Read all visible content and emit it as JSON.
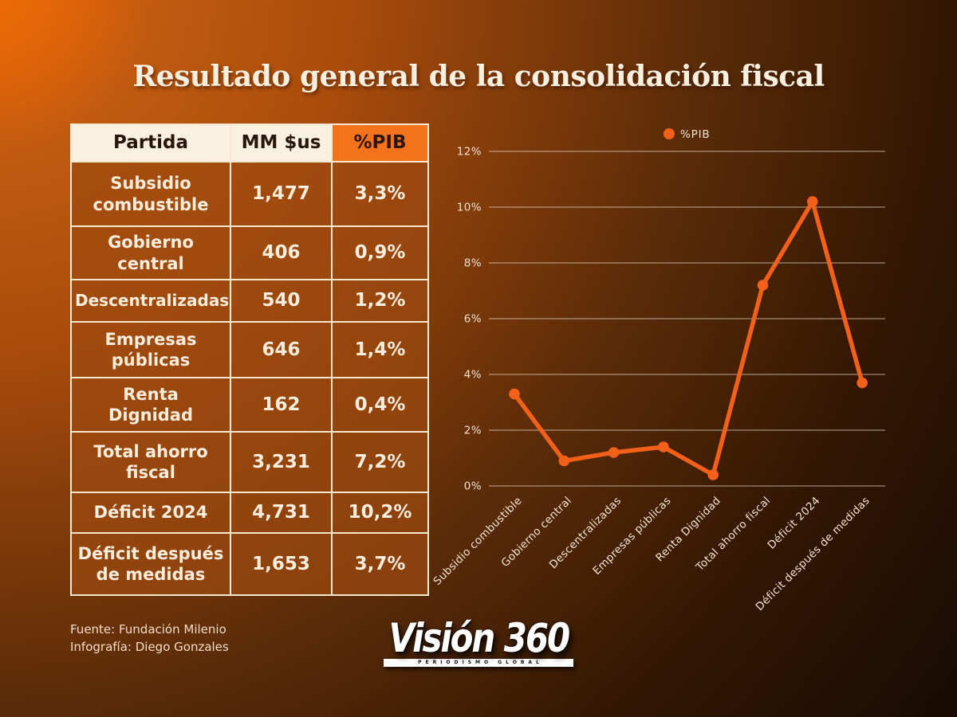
{
  "title": "Resultado general de la consolidación fiscal",
  "table": {
    "headers": [
      "Partida",
      "MM $us",
      "%PIB"
    ],
    "rows": [
      {
        "partida": "Subsidio combustible",
        "mm": "1,477",
        "pib": "3,3%"
      },
      {
        "partida": "Gobierno central",
        "mm": "406",
        "pib": "0,9%"
      },
      {
        "partida": "Descentralizadas",
        "mm": "540",
        "pib": "1,2%"
      },
      {
        "partida": "Empresas públicas",
        "mm": "646",
        "pib": "1,4%"
      },
      {
        "partida": "Renta Dignidad",
        "mm": "162",
        "pib": "0,4%"
      },
      {
        "partida": "Total ahorro fiscal",
        "mm": "3,231",
        "pib": "7,2%"
      },
      {
        "partida": "Déficit 2024",
        "mm": "4,731",
        "pib": "10,2%"
      },
      {
        "partida": "Déficit después de medidas",
        "mm": "1,653",
        "pib": "3,7%"
      }
    ]
  },
  "chart_data": {
    "type": "line",
    "categories": [
      "Subsidio combustible",
      "Gobierno central",
      "Descentralizadas",
      "Empresas públicas",
      "Renta Dignidad",
      "Total ahorro fiscal",
      "Déficit 2024",
      "Déficit después de medidas"
    ],
    "series": [
      {
        "name": "%PIB",
        "values": [
          3.3,
          0.9,
          1.2,
          1.4,
          0.4,
          7.2,
          10.2,
          3.7
        ]
      }
    ],
    "title": "",
    "xlabel": "",
    "ylabel": "",
    "ylim": [
      0,
      12
    ],
    "ytick_step": 2,
    "ytick_labels": [
      "0%",
      "2%",
      "4%",
      "6%",
      "8%",
      "10%",
      "12%"
    ],
    "grid": true,
    "legend_position": "top",
    "line_color": "#f3601a",
    "marker_color": "#f3601a",
    "gridline_color": "rgba(240,231,219,0.55)",
    "axis_text_color": "#f2e3d0"
  },
  "footer": {
    "source": "Fuente: Fundación Milenio",
    "credit": "Infografía: Diego Gonzales"
  },
  "logo": {
    "brand": "Visión 360",
    "tagline": "PERIODISMO GLOBAL"
  },
  "colors": {
    "background_top_left": "#f16d03",
    "background_bottom_right": "#150a03",
    "table_header_bg": "#faf0e0",
    "table_header_pib_bg": "#f3731c",
    "table_border": "#f8e9ce",
    "table_cell_bg": "#9c490f",
    "table_text": "#faeddc",
    "title_text": "#f8efdf",
    "accent_orange": "#f3601a"
  }
}
